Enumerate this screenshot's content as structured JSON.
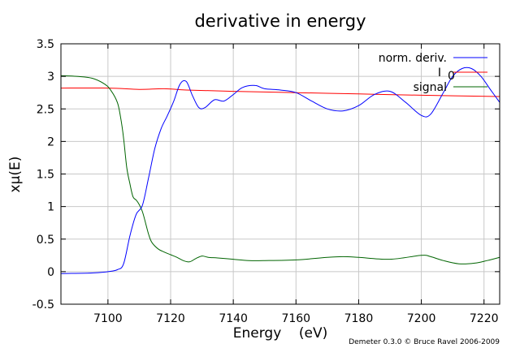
{
  "chart_data": {
    "type": "line",
    "title": "derivative in energy",
    "xlabel": "Energy    (eV)",
    "ylabel": "xμ(E)",
    "xlim": [
      7085,
      7225
    ],
    "ylim": [
      -0.5,
      3.5
    ],
    "xticks": [
      7100,
      7120,
      7140,
      7160,
      7180,
      7200,
      7220
    ],
    "xtick_labels": [
      "7100",
      "7120",
      "7140",
      "7160",
      "7180",
      "7200",
      "7220"
    ],
    "yticks": [
      -0.5,
      0,
      0.5,
      1,
      1.5,
      2,
      2.5,
      3,
      3.5
    ],
    "ytick_labels": [
      "-0.5",
      "0",
      "0.5",
      "1",
      "1.5",
      "2",
      "2.5",
      "3",
      "3.5"
    ],
    "grid": true,
    "legend_position": "top-right",
    "series": [
      {
        "name": "norm. deriv.",
        "color": "#0000ff",
        "x": [
          7085,
          7095,
          7100,
          7103,
          7105,
          7107,
          7109,
          7111,
          7113,
          7115,
          7117,
          7119,
          7121,
          7123,
          7125,
          7127,
          7129,
          7131,
          7134,
          7137,
          7140,
          7143,
          7147,
          7150,
          7155,
          7160,
          7165,
          7170,
          7175,
          7180,
          7185,
          7190,
          7195,
          7200,
          7203,
          7207,
          7210,
          7213,
          7216,
          7219,
          7222,
          7225
        ],
        "y": [
          -0.03,
          -0.02,
          0.0,
          0.03,
          0.12,
          0.55,
          0.88,
          1.02,
          1.45,
          1.9,
          2.2,
          2.4,
          2.62,
          2.88,
          2.92,
          2.7,
          2.52,
          2.52,
          2.64,
          2.62,
          2.72,
          2.83,
          2.86,
          2.81,
          2.79,
          2.75,
          2.62,
          2.5,
          2.47,
          2.55,
          2.72,
          2.77,
          2.6,
          2.4,
          2.42,
          2.75,
          3.0,
          3.12,
          3.12,
          3.0,
          2.8,
          2.6
        ]
      },
      {
        "name": "I0",
        "color": "#ff0000",
        "x": [
          7085,
          7100,
          7110,
          7118,
          7125,
          7140,
          7160,
          7180,
          7200,
          7225
        ],
        "y": [
          2.82,
          2.82,
          2.8,
          2.81,
          2.79,
          2.77,
          2.75,
          2.73,
          2.71,
          2.69
        ]
      },
      {
        "name": "signal",
        "color": "#006400",
        "x": [
          7085,
          7090,
          7095,
          7099,
          7101,
          7103,
          7104,
          7105,
          7106,
          7107,
          7108,
          7109,
          7110,
          7111,
          7112,
          7113,
          7114,
          7116,
          7118,
          7120,
          7122,
          7124,
          7126,
          7128,
          7130,
          7132,
          7135,
          7140,
          7145,
          7150,
          7160,
          7170,
          7175,
          7180,
          7190,
          7200,
          7203,
          7207,
          7212,
          7217,
          7221,
          7225
        ],
        "y": [
          3.01,
          3.0,
          2.97,
          2.88,
          2.78,
          2.6,
          2.38,
          2.05,
          1.6,
          1.35,
          1.15,
          1.1,
          1.03,
          0.92,
          0.75,
          0.57,
          0.45,
          0.35,
          0.3,
          0.26,
          0.22,
          0.17,
          0.15,
          0.2,
          0.24,
          0.22,
          0.21,
          0.19,
          0.17,
          0.17,
          0.18,
          0.22,
          0.23,
          0.22,
          0.19,
          0.25,
          0.23,
          0.17,
          0.12,
          0.13,
          0.17,
          0.22
        ]
      }
    ],
    "legend": [
      {
        "label": "norm. deriv.",
        "sub": "",
        "color": "#0000ff"
      },
      {
        "label": "I",
        "sub": "0",
        "color": "#ff0000"
      },
      {
        "label": "signal",
        "sub": "",
        "color": "#006400"
      }
    ],
    "credit": "Demeter 0.3.0 © Bruce Ravel 2006-2009"
  }
}
